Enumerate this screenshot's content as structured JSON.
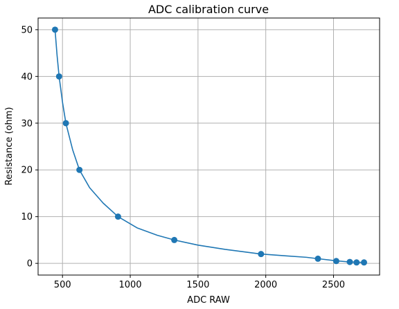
{
  "chart_data": {
    "type": "scatter",
    "title": "ADC calibration curve",
    "xlabel": "ADC RAW",
    "ylabel": "Resistance (ohm)",
    "xlim": [
      320,
      2840
    ],
    "ylim": [
      -2.5,
      52.5
    ],
    "xticks": [
      500,
      1000,
      1500,
      2000,
      2500
    ],
    "xtick_labels": [
      "500",
      "1000",
      "1500",
      "2000",
      "2500"
    ],
    "yticks": [
      0,
      10,
      20,
      30,
      40,
      50
    ],
    "ytick_labels": [
      "0",
      "10",
      "20",
      "30",
      "40",
      "50"
    ],
    "grid": true,
    "color": "#1f77b4",
    "series": [
      {
        "kind": "points",
        "x": [
          445,
          475,
          525,
          625,
          910,
          1325,
          1965,
          2385,
          2520,
          2620,
          2670,
          2725
        ],
        "y": [
          50,
          40,
          30,
          20,
          10,
          5,
          2,
          1,
          0.5,
          0.3,
          0.2,
          0.2
        ]
      },
      {
        "kind": "fitted-line",
        "x": [
          445,
          460,
          475,
          500,
          525,
          575,
          625,
          700,
          800,
          910,
          1050,
          1200,
          1325,
          1500,
          1700,
          1965,
          2150,
          2300,
          2385,
          2520,
          2620,
          2725
        ],
        "y": [
          50,
          44.5,
          40,
          34.5,
          30,
          24.3,
          20,
          16.2,
          12.9,
          10,
          7.6,
          6.0,
          5.0,
          3.9,
          3.0,
          2.0,
          1.6,
          1.3,
          1.0,
          0.55,
          0.3,
          0.2
        ]
      }
    ]
  }
}
